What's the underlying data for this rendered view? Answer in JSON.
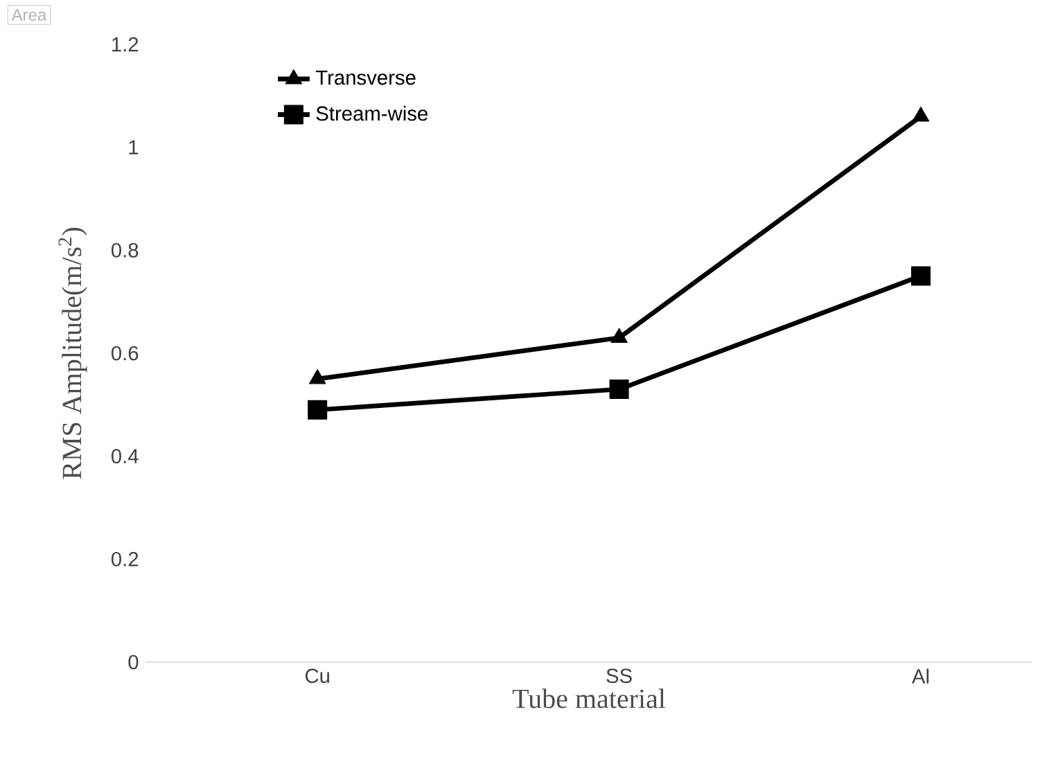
{
  "chart_data": {
    "type": "line",
    "xlabel": "Tube material",
    "ylabel": "RMS Amplitude(m/s$^{2}$)",
    "categories": [
      "Cu",
      "SS",
      "Al"
    ],
    "series": [
      {
        "name": "Transverse",
        "color": "#000000",
        "marker": "triangle",
        "values": [
          0.55,
          0.63,
          1.06
        ]
      },
      {
        "name": "Stream-wise",
        "color": "#000000",
        "marker": "square",
        "values": [
          0.49,
          0.53,
          0.75
        ]
      }
    ],
    "ylim": [
      0,
      1.2
    ],
    "yticks": [
      0,
      0.2,
      0.4,
      0.6,
      0.8,
      1,
      1.2
    ],
    "grid": false,
    "legend": "top left",
    "line_style": "solid",
    "annotations": [
      "Area"
    ]
  }
}
